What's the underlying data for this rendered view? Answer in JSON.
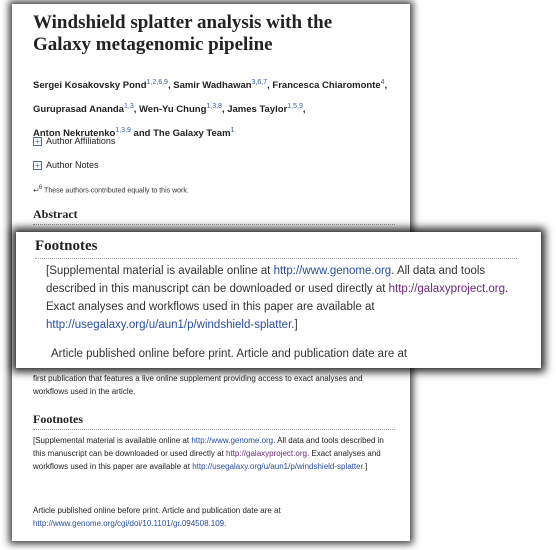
{
  "article": {
    "title": "Windshield splatter analysis with the Galaxy metagenomic pipeline",
    "authors": [
      {
        "name": "Sergei Kosakovsky Pond",
        "sup": "1,2,6,9",
        "sep": ", "
      },
      {
        "name": "Samir Wadhawan",
        "sup": "3,6,7",
        "sep": ", "
      },
      {
        "name": "Francesca Chiaromonte",
        "sup": "4",
        "sep": ","
      },
      {
        "name": "Guruprasad Ananda",
        "sup": "1,3",
        "sep": ", "
      },
      {
        "name": "Wen-Yu Chung",
        "sup": "1,3,8",
        "sep": ", "
      },
      {
        "name": "James Taylor",
        "sup": "1,5,9",
        "sep": ","
      },
      {
        "name": "Anton Nekrutenko",
        "sup": "1,3,9",
        "sep": " and The Galaxy Team"
      },
      {
        "name": "",
        "sup": "1",
        "sep": ""
      }
    ],
    "affiliations_label": "Author Affiliations",
    "notes_label": "Author Notes",
    "equal_note_sup": "6",
    "equal_note": "These authors contributed equally to this work.",
    "abstract_heading": "Abstract",
    "abstract_tail": "first publication that features a live online supplement providing access to exact analyses and workflows used in the article.",
    "footnotes_heading": "Footnotes",
    "footnote_supplement": {
      "pre": "[Supplemental material is available online at ",
      "link1": "http://www.genome.org",
      "mid1": ". All data and tools described in this manuscript can be downloaded or used directly at ",
      "link2": "http://galaxyproject.org",
      "mid2": ". Exact analyses and workflows used in this paper are available at ",
      "link3": "http://usegalaxy.org/u/aun1/p/windshield-splatter",
      "post": ".]"
    },
    "published_pre": "Article published online before print. Article and publication date are at",
    "published_link": "http://www.genome.org/cgi/doi/10.1101/gr.094508.109",
    "published_post": "."
  }
}
